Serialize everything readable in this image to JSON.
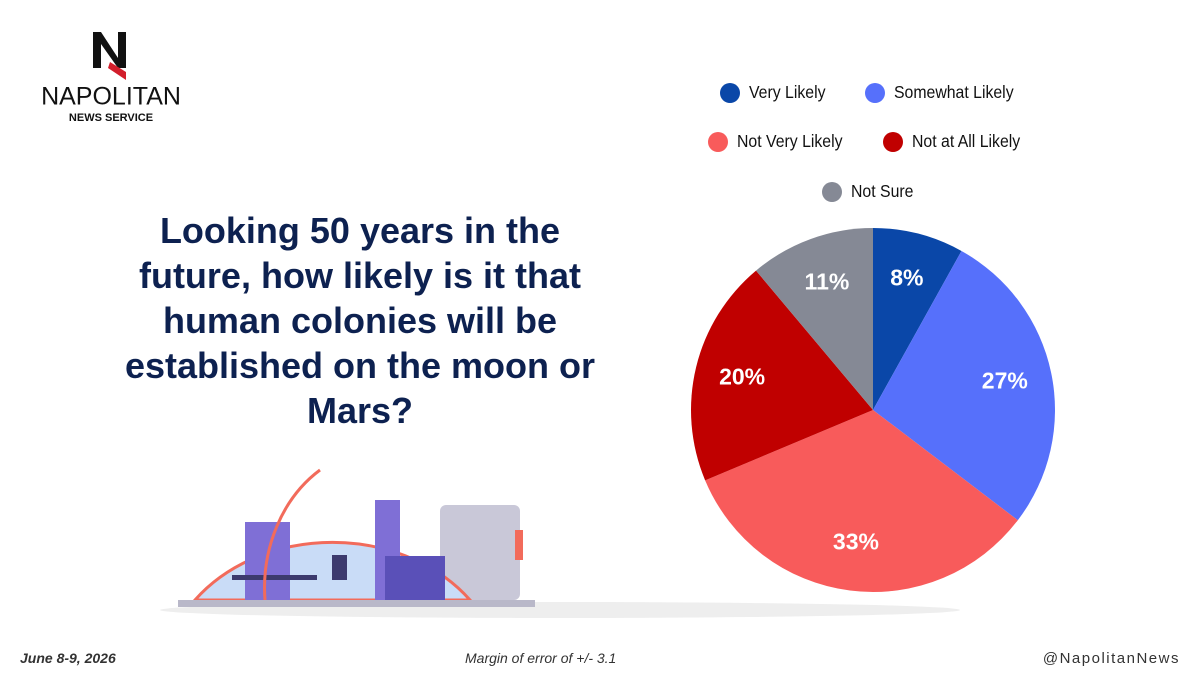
{
  "brand": {
    "name": "NAPOLITAN",
    "tagline": "NEWS SERVICE"
  },
  "question": "Looking 50 years in the future, how likely is it that human colonies will be established on the moon or Mars?",
  "chart_data": {
    "type": "pie",
    "categories": [
      "Very Likely",
      "Somewhat Likely",
      "Not Very Likely",
      "Not at All Likely",
      "Not Sure"
    ],
    "values": [
      8,
      27,
      33,
      20,
      11
    ],
    "value_labels": [
      "8%",
      "27%",
      "33%",
      "20%",
      "11%"
    ],
    "colors": [
      "#0a47a8",
      "#5670fb",
      "#f85b5b",
      "#c00000",
      "#858995"
    ]
  },
  "footer": {
    "date": "June 8-9, 2026",
    "margin": "Margin of error of +/- 3.1",
    "handle": "@NapolitanNews"
  }
}
